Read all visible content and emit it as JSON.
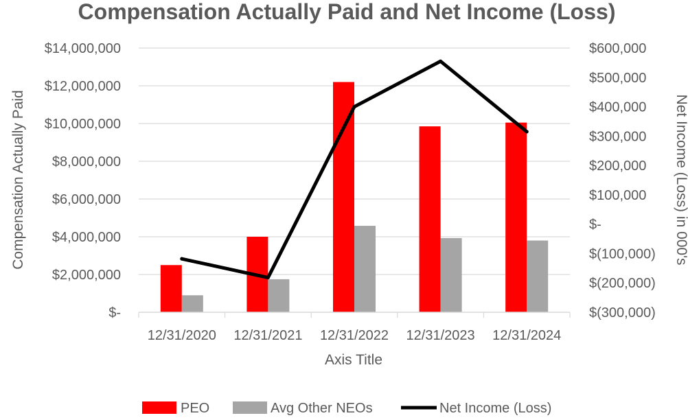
{
  "chart_data": {
    "type": "bar",
    "title": "Compensation Actually Paid and Net Income (Loss)",
    "xlabel": "Axis Title",
    "ylabel": "Compensation Actually Paid",
    "y2label": "Net Income (Loss) in 000's",
    "categories": [
      "12/31/2020",
      "12/31/2021",
      "12/31/2022",
      "12/31/2023",
      "12/31/2024"
    ],
    "ylim": [
      0,
      14000000
    ],
    "y_ticks": [
      0,
      2000000,
      4000000,
      6000000,
      8000000,
      10000000,
      12000000,
      14000000
    ],
    "y_tick_labels": [
      "$-",
      "$2,000,000",
      "$4,000,000",
      "$6,000,000",
      "$8,000,000",
      "$10,000,000",
      "$12,000,000",
      "$14,000,000"
    ],
    "y2lim": [
      -300000,
      600000
    ],
    "y2_ticks": [
      -300000,
      -200000,
      -100000,
      0,
      100000,
      200000,
      300000,
      400000,
      500000,
      600000
    ],
    "y2_tick_labels": [
      "$(300,000)",
      "$(200,000)",
      "$(100,000)",
      "$-",
      "$100,000",
      "$200,000",
      "$300,000",
      "$400,000",
      "$500,000",
      "$600,000"
    ],
    "grid": true,
    "legend_position": "bottom",
    "series": [
      {
        "name": "PEO",
        "type": "bar",
        "axis": "left",
        "color": "#ff0000",
        "values": [
          2500000,
          4000000,
          12200000,
          9850000,
          10050000
        ]
      },
      {
        "name": "Avg Other NEOs",
        "type": "bar",
        "axis": "left",
        "color": "#a5a5a5",
        "values": [
          900000,
          1750000,
          4580000,
          3930000,
          3800000
        ]
      },
      {
        "name": "Net Income (Loss)",
        "type": "line",
        "axis": "right",
        "color": "#000000",
        "values": [
          -118000,
          -182000,
          400000,
          555000,
          315000
        ]
      }
    ]
  }
}
